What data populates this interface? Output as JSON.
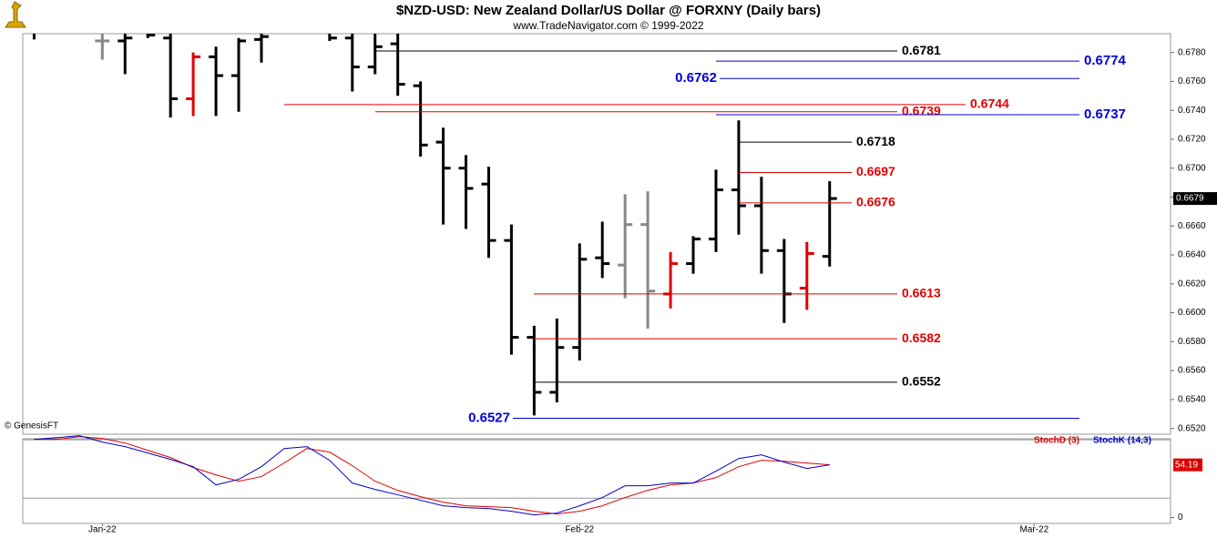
{
  "chart_data": [
    {
      "type": "ohlc",
      "title": "$NZD-USD:  New Zealand Dollar/US Dollar @ FORXNY  (Daily bars)",
      "subtitle": "www.TradeNavigator.com © 1999-2022",
      "copyright": "© GenesisFT",
      "open": [
        0.6796,
        null,
        null,
        0.6788,
        0.6788,
        0.6794,
        0.679,
        0.6748,
        0.6777,
        0.6764,
        0.6789,
        null,
        null,
        0.6795,
        0.679,
        0.677,
        0.6786,
        0.6757,
        0.6718,
        0.67,
        0.6689,
        0.665,
        0.6583,
        0.6545,
        0.6576,
        0.6638,
        0.6633,
        0.6661,
        0.6613,
        0.6634,
        0.6651,
        0.6685,
        0.6674,
        0.6643,
        0.6617,
        0.6639
      ],
      "high": [
        0.68,
        null,
        null,
        0.6796,
        0.6795,
        0.68,
        0.6795,
        0.678,
        0.6784,
        0.679,
        0.6793,
        null,
        null,
        0.68,
        0.6793,
        0.6795,
        0.6793,
        0.676,
        0.6728,
        0.6709,
        0.6701,
        0.6661,
        0.6591,
        0.6596,
        0.6648,
        0.6663,
        0.6682,
        0.6684,
        0.6642,
        0.6653,
        0.6699,
        0.6733,
        0.6694,
        0.6651,
        0.6649,
        0.6691
      ],
      "low": [
        0.6789,
        null,
        null,
        0.6775,
        0.6765,
        0.679,
        0.6735,
        0.6736,
        0.6736,
        0.6739,
        0.6773,
        null,
        null,
        0.6788,
        0.6753,
        0.6765,
        0.675,
        0.6708,
        0.6661,
        0.6658,
        0.6638,
        0.6571,
        0.6529,
        0.6538,
        0.6567,
        0.6624,
        0.661,
        0.6589,
        0.6603,
        0.6627,
        0.6642,
        0.6654,
        0.6627,
        0.6593,
        0.6602,
        0.6632
      ],
      "close": [
        0.6794,
        null,
        null,
        0.6788,
        0.679,
        0.6792,
        0.6748,
        0.6777,
        0.6764,
        0.6788,
        0.6791,
        null,
        null,
        0.679,
        0.677,
        0.6784,
        0.6758,
        0.6716,
        0.67,
        0.6686,
        0.665,
        0.6583,
        0.6545,
        0.6576,
        0.6637,
        0.6634,
        0.6661,
        0.6615,
        0.6634,
        0.6651,
        0.6685,
        0.6674,
        0.6643,
        0.6613,
        0.6641,
        0.6679
      ],
      "bar_colors": [
        "#000000",
        null,
        null,
        "#888888",
        "#000000",
        "#000000",
        "#000000",
        "#e00000",
        "#000000",
        "#000000",
        "#000000",
        null,
        null,
        "#000000",
        "#000000",
        "#000000",
        "#000000",
        "#000000",
        "#000000",
        "#000000",
        "#000000",
        "#000000",
        "#000000",
        "#000000",
        "#000000",
        "#000000",
        "#888888",
        "#888888",
        "#e00000",
        "#000000",
        "#000000",
        "#000000",
        "#000000",
        "#000000",
        "#e00000",
        "#000000"
      ],
      "xlim": [
        -0.5,
        50
      ],
      "ylim": [
        0.6516,
        0.6793
      ],
      "yticks": [
        {
          "value": 0.652,
          "label": "0.6520"
        },
        {
          "value": 0.654,
          "label": "0.6540"
        },
        {
          "value": 0.656,
          "label": "0.6560"
        },
        {
          "value": 0.658,
          "label": "0.6580"
        },
        {
          "value": 0.66,
          "label": "0.6600"
        },
        {
          "value": 0.662,
          "label": "0.6620"
        },
        {
          "value": 0.664,
          "label": "0.6640"
        },
        {
          "value": 0.666,
          "label": "0.6660"
        },
        {
          "value": 0.668,
          "label": "0.6680"
        },
        {
          "value": 0.67,
          "label": "0.6700"
        },
        {
          "value": 0.672,
          "label": "0.6720"
        },
        {
          "value": 0.674,
          "label": "0.6740"
        },
        {
          "value": 0.676,
          "label": "0.6760"
        },
        {
          "value": 0.678,
          "label": "0.6780"
        }
      ],
      "levels": [
        {
          "value": 0.6781,
          "color": "#000000"
        },
        {
          "value": 0.6774,
          "color": "#0000dd"
        },
        {
          "value": 0.6762,
          "color": "#0000dd"
        },
        {
          "value": 0.6744,
          "color": "#e00000"
        },
        {
          "value": 0.6739,
          "color": "#e00000"
        },
        {
          "value": 0.6737,
          "color": "#0000dd"
        },
        {
          "value": 0.6718,
          "color": "#000000"
        },
        {
          "value": 0.6697,
          "color": "#e00000"
        },
        {
          "value": 0.6676,
          "color": "#e00000"
        },
        {
          "value": 0.6613,
          "color": "#e00000"
        },
        {
          "value": 0.6582,
          "color": "#e00000"
        },
        {
          "value": 0.6552,
          "color": "#000000"
        },
        {
          "value": 0.6527,
          "color": "#0000dd"
        }
      ]
    },
    {
      "type": "line",
      "series": [
        {
          "name": "StochD (3)",
          "color": "#e00000",
          "values": [
            80.4,
            80.4,
            83.2,
            81.3,
            76.6,
            69.2,
            61.7,
            51.4,
            43.9,
            37.4,
            42.1,
            56.1,
            71.0,
            67.3,
            53.3,
            37.4,
            28.0,
            21.5,
            15.9,
            12.1,
            11.2,
            10.3,
            6.5,
            3.7,
            6.5,
            12.1,
            20.6,
            28.0,
            33.6,
            35.5,
            41.1,
            52.3,
            58.9,
            57.9,
            56.1,
            54.2
          ]
        },
        {
          "name": "StochK (14,3)",
          "color": "#0000cc",
          "values": [
            80.4,
            82.2,
            84.1,
            77.6,
            72.9,
            66.4,
            59.8,
            52.3,
            33.6,
            39.3,
            52.3,
            71.0,
            72.9,
            58.9,
            35.5,
            29.0,
            23.4,
            17.8,
            12.1,
            10.3,
            9.3,
            6.5,
            2.8,
            4.7,
            12.1,
            20.6,
            32.7,
            32.7,
            35.5,
            35.5,
            47.7,
            60.7,
            64.5,
            57.0,
            50.5,
            54.19
          ]
        }
      ],
      "xlim": [
        -0.5,
        50
      ],
      "xticks": [
        {
          "value": 3,
          "label": "Jan-22"
        },
        {
          "value": 24,
          "label": "Feb-22"
        },
        {
          "value": 44,
          "label": "Mar-22"
        }
      ],
      "ylim": [
        -6,
        81
      ],
      "yticks": [
        0
      ],
      "hlines": [
        20,
        80
      ]
    }
  ]
}
